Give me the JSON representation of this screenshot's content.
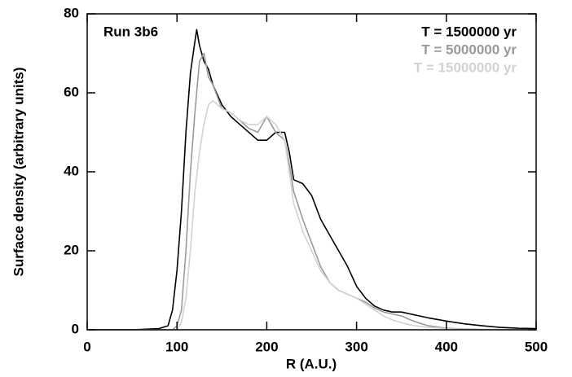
{
  "chart_data": {
    "type": "line",
    "annotation": "Run 3b6",
    "xlabel": "R (A.U.)",
    "ylabel": "Surface density (arbitrary units)",
    "xlim": [
      0,
      500
    ],
    "xticks": [
      0,
      100,
      200,
      300,
      400,
      500
    ],
    "ylim": [
      0,
      80
    ],
    "yticks": [
      0,
      20,
      40,
      60,
      80
    ],
    "legend": "upper right",
    "series": [
      {
        "name": "T = 1500000 yr",
        "color": "#000000",
        "x": [
          0,
          50,
          80,
          90,
          95,
          100,
          105,
          110,
          115,
          120,
          122,
          125,
          130,
          135,
          140,
          150,
          160,
          170,
          180,
          190,
          200,
          210,
          220,
          225,
          230,
          240,
          250,
          260,
          270,
          280,
          290,
          300,
          310,
          320,
          330,
          340,
          350,
          360,
          380,
          400,
          420,
          440,
          460,
          480,
          500
        ],
        "values": [
          0,
          0,
          0.3,
          1,
          5,
          15,
          30,
          50,
          65,
          73,
          76,
          72,
          68,
          66,
          62,
          57,
          54,
          52,
          50,
          48,
          48,
          50,
          50,
          45,
          38,
          37,
          34,
          28,
          24,
          20,
          16,
          11,
          8,
          6,
          5,
          4.5,
          4.5,
          4,
          3,
          2.2,
          1.5,
          1,
          0.6,
          0.4,
          0.3
        ]
      },
      {
        "name": "T = 5000000 yr",
        "color": "#9a9a9a",
        "x": [
          0,
          95,
          100,
          105,
          110,
          115,
          120,
          125,
          130,
          135,
          140,
          150,
          160,
          170,
          180,
          190,
          200,
          210,
          220,
          225,
          230,
          240,
          250,
          260,
          270,
          280,
          290,
          300,
          310,
          320,
          330,
          340,
          350,
          360,
          370,
          380,
          400,
          420,
          440,
          500
        ],
        "values": [
          0,
          0,
          1,
          5,
          20,
          40,
          55,
          68,
          70,
          64,
          62,
          56,
          55,
          53,
          51,
          50,
          54,
          50,
          48,
          42,
          35,
          28,
          22,
          16,
          12,
          10,
          9,
          8,
          7,
          5.5,
          4.5,
          4,
          3.5,
          2.5,
          1.7,
          1,
          0.4,
          0.2,
          0.1,
          0
        ]
      },
      {
        "name": "T = 15000000 yr",
        "color": "#d2d2d2",
        "x": [
          0,
          100,
          105,
          110,
          115,
          120,
          125,
          130,
          135,
          140,
          150,
          160,
          170,
          180,
          190,
          200,
          210,
          220,
          225,
          230,
          240,
          250,
          260,
          270,
          280,
          290,
          300,
          310,
          320,
          330,
          340,
          350,
          360,
          380,
          400,
          420,
          500
        ],
        "values": [
          0,
          0,
          2,
          8,
          20,
          35,
          45,
          52,
          57,
          58,
          56,
          55,
          53,
          52,
          52,
          54,
          52,
          48,
          40,
          32,
          25,
          20,
          15,
          12,
          10,
          9,
          8,
          6.5,
          5,
          3.5,
          2.5,
          1.8,
          1.2,
          0.6,
          0.3,
          0.1,
          0
        ]
      }
    ]
  }
}
